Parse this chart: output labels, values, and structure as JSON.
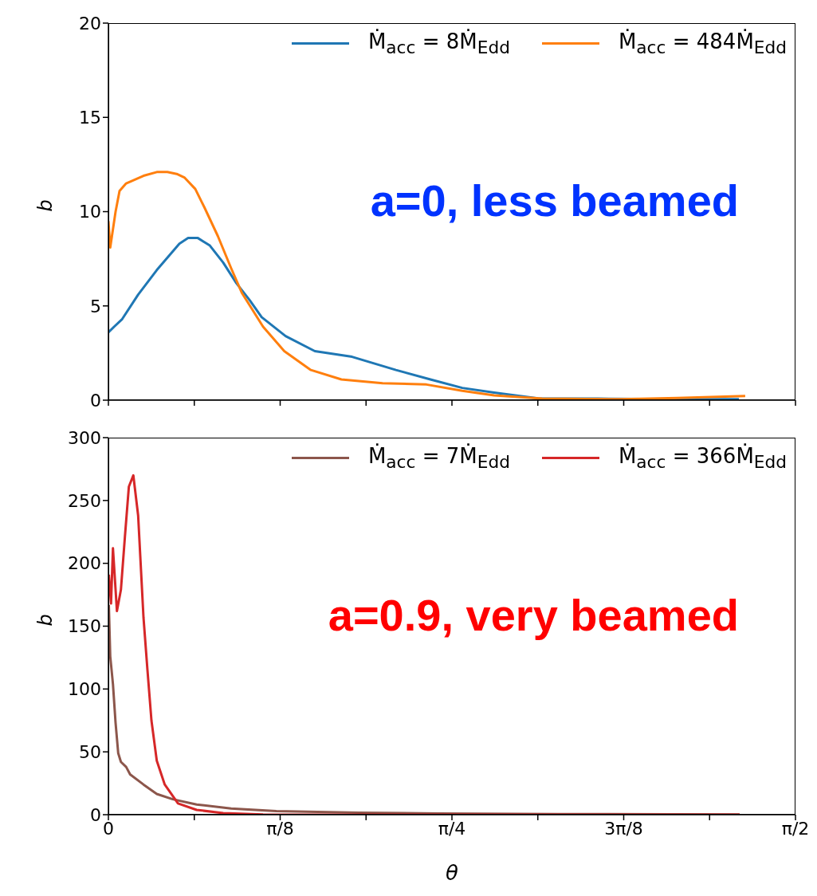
{
  "chart_data": [
    {
      "type": "line",
      "ylabel": "b",
      "xlim": [
        0,
        1.5708
      ],
      "xticks": [
        {
          "value": 0,
          "label": null
        },
        {
          "value": 0.19635,
          "label": null
        },
        {
          "value": 0.3927,
          "label": null
        },
        {
          "value": 0.58905,
          "label": null
        },
        {
          "value": 0.7854,
          "label": null
        },
        {
          "value": 0.98175,
          "label": null
        },
        {
          "value": 1.1781,
          "label": null
        },
        {
          "value": 1.37445,
          "label": null
        },
        {
          "value": 1.5708,
          "label": null
        }
      ],
      "ylim": [
        0,
        20
      ],
      "yticks": [
        0,
        5,
        10,
        15,
        20
      ],
      "tick_labels": "y",
      "legend": "top right",
      "annotations": [
        "a=0, less beamed"
      ],
      "series": [
        {
          "name": "Ṁ$_{acc}$ = 8Ṁ$_{Edd}$",
          "color": "#1f77b4",
          "x": [
            0,
            0.0133,
            0.0315,
            0.068,
            0.1106,
            0.1622,
            0.1822,
            0.2046,
            0.232,
            0.2624,
            0.2928,
            0.3231,
            0.3504,
            0.4051,
            0.472,
            0.5571,
            0.6573,
            0.7362,
            0.8091,
            0.882,
            0.9822,
            1.119,
            1.301,
            1.4414
          ],
          "values": [
            3.6,
            3.9,
            4.3,
            5.6,
            6.9,
            8.3,
            8.6,
            8.6,
            8.2,
            7.3,
            6.2,
            5.3,
            4.4,
            3.4,
            2.6,
            2.3,
            1.6,
            1.1,
            0.65,
            0.4,
            0.1,
            0.08,
            0.05,
            0.05
          ]
        },
        {
          "name": "Ṁ$_{acc}$ = 484Ṁ$_{Edd}$",
          "color": "#ff7f0e",
          "x": [
            0,
            0.0042,
            0.0164,
            0.0255,
            0.0406,
            0.0802,
            0.1106,
            0.1349,
            0.1562,
            0.1744,
            0.1987,
            0.22,
            0.2503,
            0.2806,
            0.3049,
            0.3535,
            0.4021,
            0.4629,
            0.5327,
            0.6269,
            0.7271,
            0.8091,
            0.882,
            0.9913,
            1.1735,
            1.301,
            1.4559
          ],
          "values": [
            9.5,
            8.1,
            10,
            11.1,
            11.5,
            11.9,
            12.1,
            12.1,
            12,
            11.8,
            11.2,
            10.2,
            8.7,
            7,
            5.7,
            3.9,
            2.6,
            1.6,
            1.1,
            0.9,
            0.83,
            0.5,
            0.25,
            0.08,
            0.05,
            0.12,
            0.22
          ]
        }
      ]
    },
    {
      "type": "line",
      "xlabel": "θ",
      "ylabel": "b",
      "xlim": [
        0,
        1.5708
      ],
      "xticks": [
        {
          "value": 0,
          "label": "0"
        },
        {
          "value": 0.19635,
          "label": null
        },
        {
          "value": 0.3927,
          "label": "π/8"
        },
        {
          "value": 0.58905,
          "label": null
        },
        {
          "value": 0.7854,
          "label": "π/4"
        },
        {
          "value": 0.98175,
          "label": null
        },
        {
          "value": 1.1781,
          "label": "3π/8"
        },
        {
          "value": 1.37445,
          "label": null
        },
        {
          "value": 1.5708,
          "label": "π/2"
        }
      ],
      "ylim": [
        0,
        300
      ],
      "yticks": [
        0,
        50,
        100,
        150,
        200,
        250,
        300
      ],
      "legend": "top right",
      "annotations": [
        "a=0.9, very beamed"
      ],
      "series": [
        {
          "name": "Ṁ$_{acc}$ = 7Ṁ$_{Edd}$",
          "color": "#8c564b",
          "x": [
            0.001,
            0.0042,
            0.0104,
            0.0164,
            0.0224,
            0.0286,
            0.0406,
            0.0497,
            0.0802,
            0.1106,
            0.1471,
            0.2017,
            0.2806,
            0.384,
            0.5722,
            0.7544,
            1.0278,
            1.4432
          ],
          "values": [
            167,
            126,
            104,
            73,
            49,
            42,
            38,
            32,
            24,
            16.5,
            12.3,
            8.1,
            4.9,
            2.8,
            1.6,
            1,
            0.5,
            0.2
          ]
        },
        {
          "name": "Ṁ$_{acc}$ = 366Ṁ$_{Edd}$",
          "color": "#d62728",
          "x": [
            0.001,
            0.006,
            0.0104,
            0.0195,
            0.0286,
            0.0377,
            0.0468,
            0.057,
            0.068,
            0.0802,
            0.0893,
            0.0984,
            0.1106,
            0.1288,
            0.1591,
            0.2017,
            0.2624,
            0.3535,
            0.6633,
            1.4432
          ],
          "values": [
            191,
            168,
            212,
            162,
            179,
            221,
            261,
            270,
            238,
            157,
            115,
            75,
            43,
            24,
            9,
            3.8,
            1.3,
            0.2,
            0,
            0
          ]
        }
      ]
    }
  ]
}
